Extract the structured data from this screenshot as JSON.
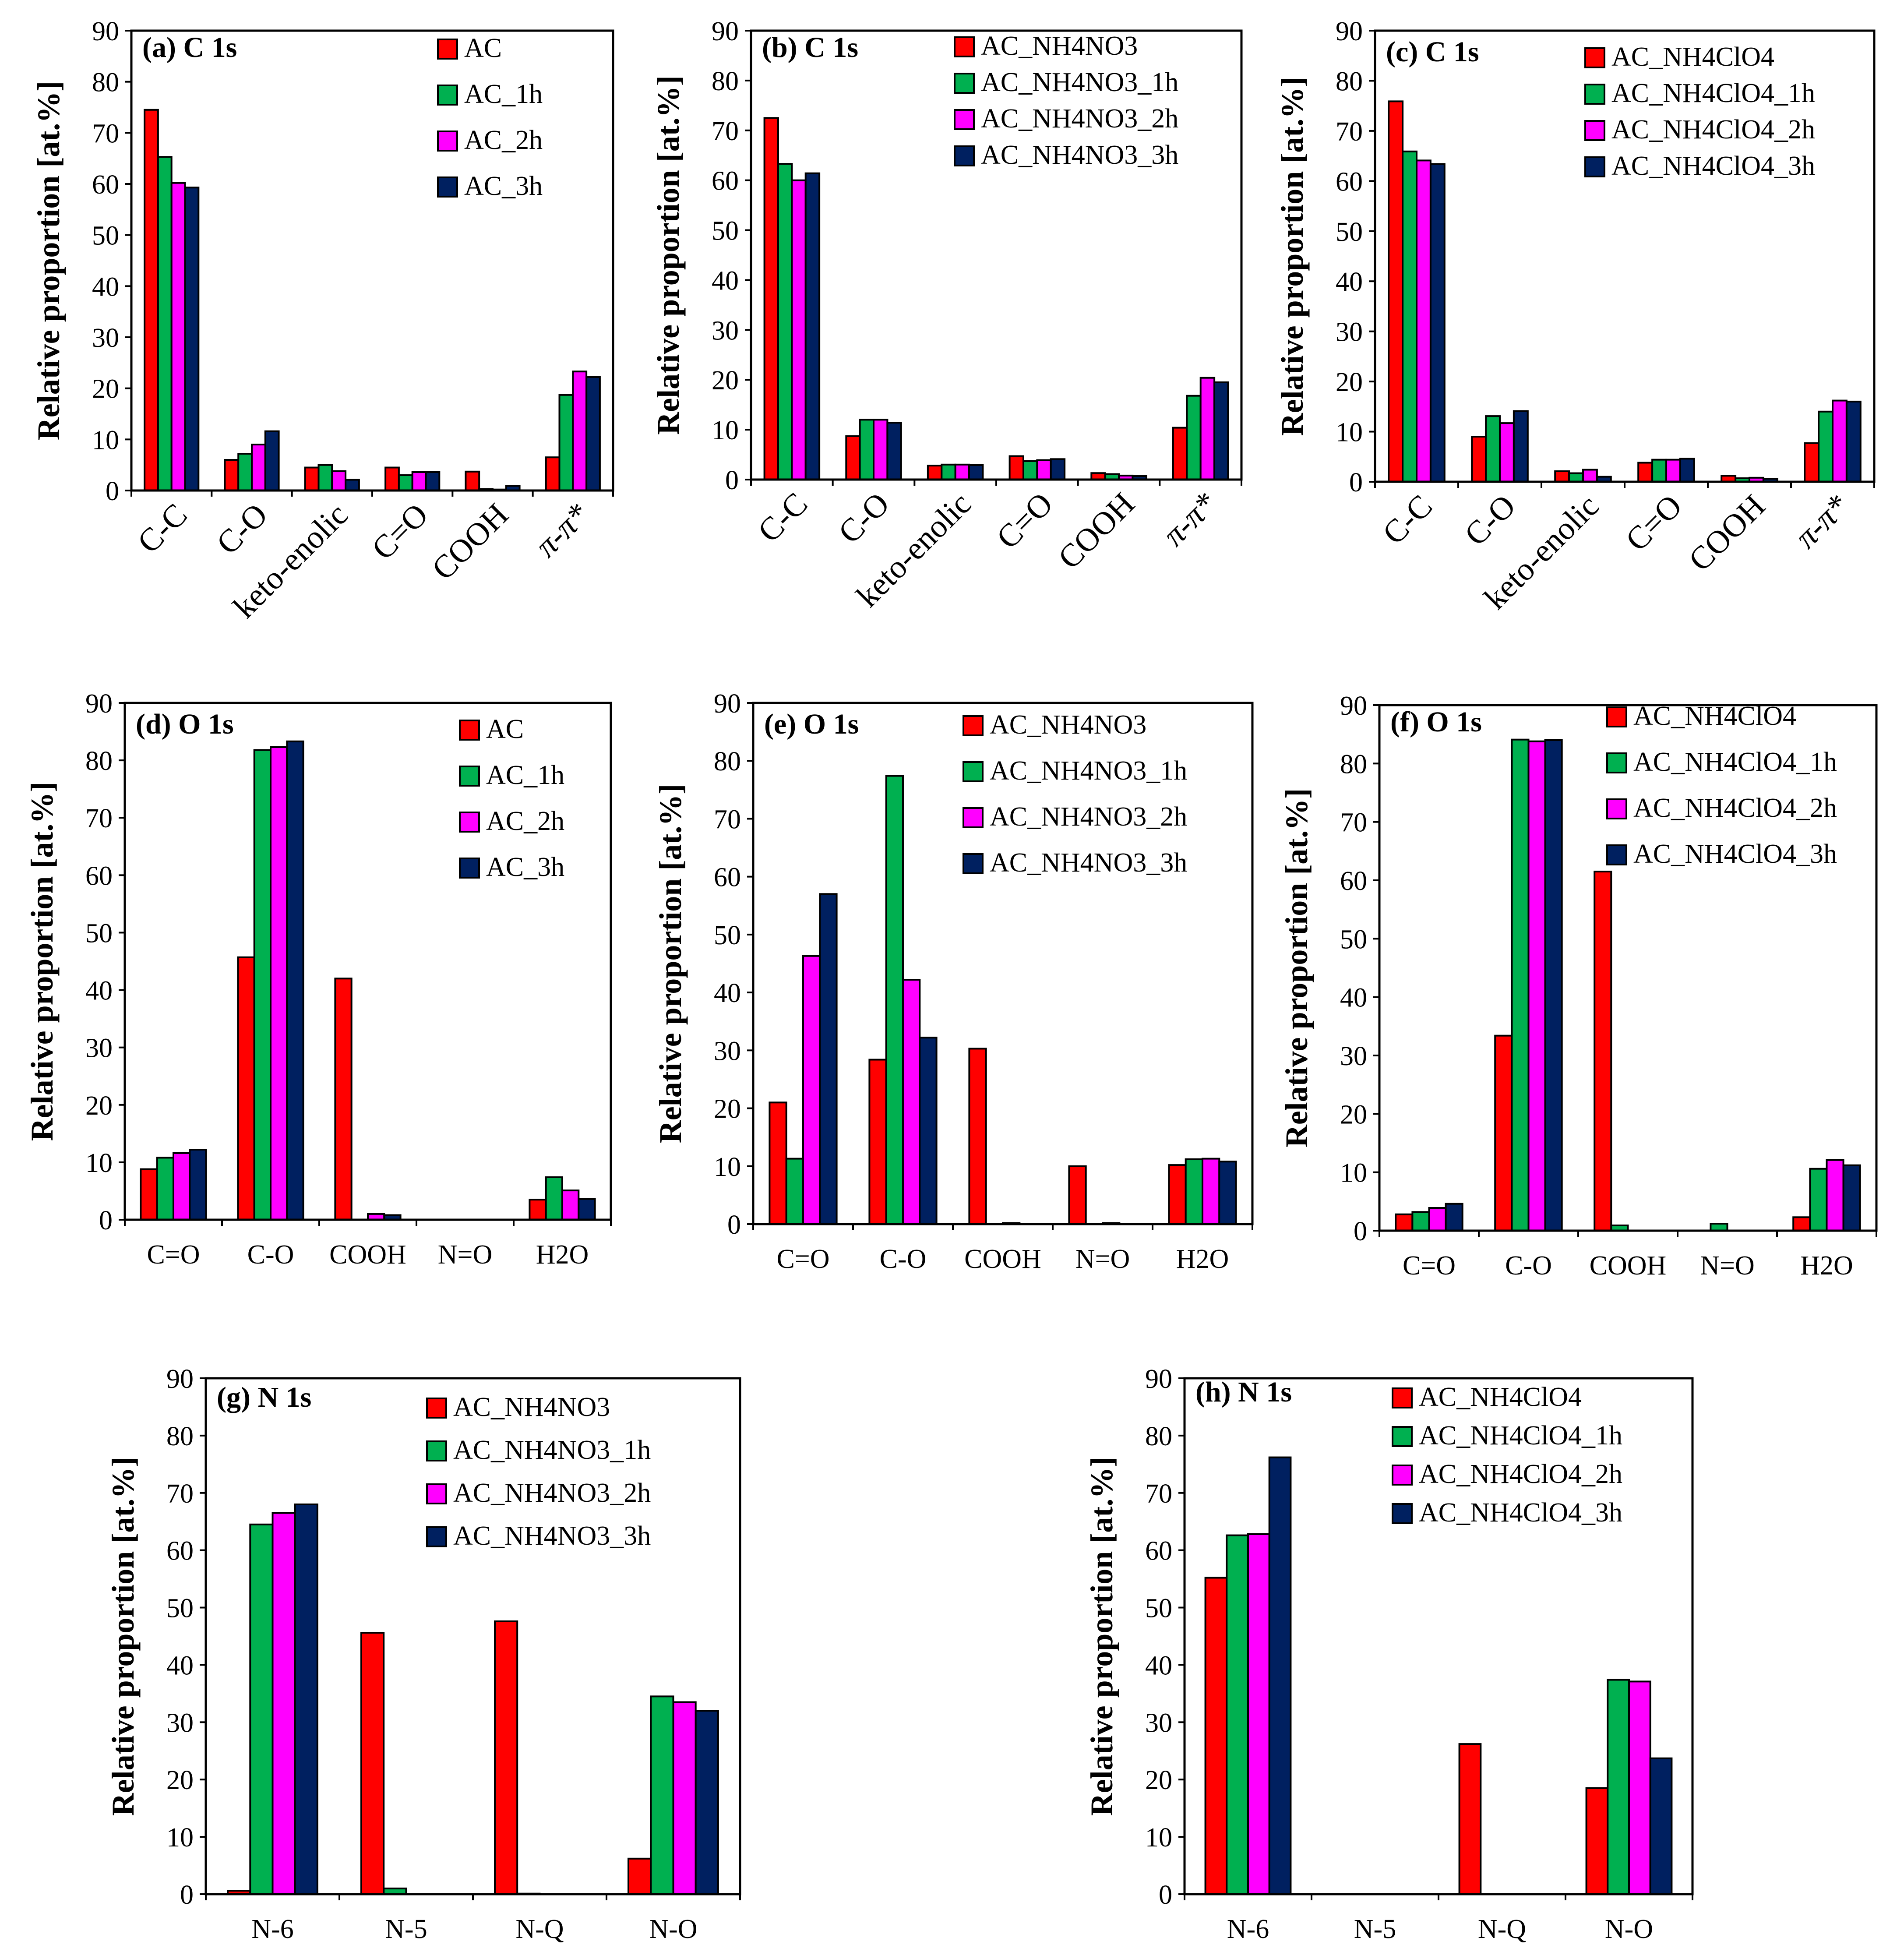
{
  "series_colors": [
    "#ff0000",
    "#00b050",
    "#ff00ff",
    "#002060"
  ],
  "y_ticks": [
    "0",
    "10",
    "20",
    "30",
    "40",
    "50",
    "60",
    "70",
    "80",
    "90"
  ],
  "chart_data": [
    {
      "id": "a",
      "type": "bar",
      "title": "(a) C 1s",
      "xlabel": "",
      "ylabel": "Relative proportion [at.%]",
      "ylim": [
        0,
        90
      ],
      "rotated_labels": true,
      "categories": [
        "C-C",
        "C-O",
        "keto-enolic",
        "C=O",
        "COOH",
        "π-π*"
      ],
      "series": [
        {
          "name": "AC",
          "values": [
            74.5,
            6.0,
            4.5,
            4.5,
            3.7,
            6.5
          ]
        },
        {
          "name": "AC_1h",
          "values": [
            65.3,
            7.2,
            5.0,
            3.0,
            0.3,
            18.7
          ]
        },
        {
          "name": "AC_2h",
          "values": [
            60.2,
            9.0,
            3.8,
            3.6,
            0.2,
            23.3
          ]
        },
        {
          "name": "AC_3h",
          "values": [
            59.3,
            11.6,
            2.1,
            3.6,
            0.9,
            22.2
          ]
        }
      ]
    },
    {
      "id": "b",
      "type": "bar",
      "title": "(b) C 1s",
      "xlabel": "",
      "ylabel": "Relative proportion [at.%]",
      "ylim": [
        0,
        90
      ],
      "rotated_labels": true,
      "categories": [
        "C-C",
        "C-O",
        "keto-enolic",
        "C=O",
        "COOH",
        "π-π*"
      ],
      "series": [
        {
          "name": "AC_NH4NO3",
          "values": [
            72.5,
            8.7,
            2.8,
            4.7,
            1.3,
            10.4
          ]
        },
        {
          "name": "AC_NH4NO3_1h",
          "values": [
            63.3,
            12.0,
            3.0,
            3.7,
            1.1,
            16.8
          ]
        },
        {
          "name": "AC_NH4NO3_2h",
          "values": [
            60.0,
            12.0,
            3.0,
            3.9,
            0.8,
            20.4
          ]
        },
        {
          "name": "AC_NH4NO3_3h",
          "values": [
            61.4,
            11.4,
            2.9,
            4.1,
            0.7,
            19.5
          ]
        }
      ]
    },
    {
      "id": "c",
      "type": "bar",
      "title": "(c) C 1s",
      "xlabel": "",
      "ylabel": "Relative proportion [at.%]",
      "ylim": [
        0,
        90
      ],
      "rotated_labels": true,
      "categories": [
        "C-C",
        "C-O",
        "keto-enolic",
        "C=O",
        "COOH",
        "π-π*"
      ],
      "series": [
        {
          "name": "AC_NH4ClO4",
          "values": [
            75.9,
            9.0,
            2.1,
            3.8,
            1.2,
            7.7
          ]
        },
        {
          "name": "AC_NH4ClO4_1h",
          "values": [
            65.9,
            13.1,
            1.7,
            4.4,
            0.7,
            14.0
          ]
        },
        {
          "name": "AC_NH4ClO4_2h",
          "values": [
            64.1,
            11.7,
            2.4,
            4.4,
            0.8,
            16.2
          ]
        },
        {
          "name": "AC_NH4ClO4_3h",
          "values": [
            63.4,
            14.1,
            1.0,
            4.6,
            0.6,
            16.0
          ]
        }
      ]
    },
    {
      "id": "d",
      "type": "bar",
      "title": "(d) O 1s",
      "xlabel": "",
      "ylabel": "Relative proportion [at.%]",
      "ylim": [
        0,
        90
      ],
      "rotated_labels": false,
      "categories": [
        "C=O",
        "C-O",
        "COOH",
        "N=O",
        "H2O"
      ],
      "series": [
        {
          "name": "AC",
          "values": [
            8.8,
            45.7,
            42.0,
            0,
            3.5
          ]
        },
        {
          "name": "AC_1h",
          "values": [
            10.8,
            81.8,
            0,
            0,
            7.4
          ]
        },
        {
          "name": "AC_2h",
          "values": [
            11.6,
            82.3,
            1.0,
            0,
            5.1
          ]
        },
        {
          "name": "AC_3h",
          "values": [
            12.2,
            83.3,
            0.8,
            0,
            3.6
          ]
        }
      ]
    },
    {
      "id": "e",
      "type": "bar",
      "title": "(e) O 1s",
      "xlabel": "",
      "ylabel": "Relative proportion [at.%]",
      "ylim": [
        0,
        90
      ],
      "rotated_labels": false,
      "categories": [
        "C=O",
        "C-O",
        "COOH",
        "N=O",
        "H2O"
      ],
      "series": [
        {
          "name": "AC_NH4NO3",
          "values": [
            21.0,
            28.4,
            30.3,
            10.0,
            10.2
          ]
        },
        {
          "name": "AC_NH4NO3_1h",
          "values": [
            11.3,
            77.4,
            0,
            0,
            11.2
          ]
        },
        {
          "name": "AC_NH4NO3_2h",
          "values": [
            46.3,
            42.2,
            0.2,
            0.2,
            11.3
          ]
        },
        {
          "name": "AC_NH4NO3_3h",
          "values": [
            57.0,
            32.2,
            0,
            0,
            10.8
          ]
        }
      ]
    },
    {
      "id": "f",
      "type": "bar",
      "title": "(f) O 1s",
      "xlabel": "",
      "ylabel": "Relative proportion [at.%]",
      "ylim": [
        0,
        90
      ],
      "rotated_labels": false,
      "categories": [
        "C=O",
        "C-O",
        "COOH",
        "N=O",
        "H2O"
      ],
      "series": [
        {
          "name": "AC_NH4ClO4",
          "values": [
            2.8,
            33.4,
            61.5,
            0,
            2.3
          ]
        },
        {
          "name": "AC_NH4ClO4_1h",
          "values": [
            3.2,
            84.1,
            0.9,
            1.2,
            10.6
          ]
        },
        {
          "name": "AC_NH4ClO4_2h",
          "values": [
            3.9,
            83.8,
            0,
            0,
            12.1
          ]
        },
        {
          "name": "AC_NH4ClO4_3h",
          "values": [
            4.6,
            84.0,
            0,
            0,
            11.2
          ]
        }
      ]
    },
    {
      "id": "g",
      "type": "bar",
      "title": "(g) N 1s",
      "xlabel": "",
      "ylabel": "Relative proportion [at.%]",
      "ylim": [
        0,
        90
      ],
      "rotated_labels": false,
      "categories": [
        "N-6",
        "N-5",
        "N-Q",
        "N-O"
      ],
      "series": [
        {
          "name": "AC_NH4NO3",
          "values": [
            0.6,
            45.6,
            47.6,
            6.2
          ]
        },
        {
          "name": "AC_NH4NO3_1h",
          "values": [
            64.5,
            1.0,
            0.1,
            34.5
          ]
        },
        {
          "name": "AC_NH4NO3_2h",
          "values": [
            66.5,
            0,
            0,
            33.5
          ]
        },
        {
          "name": "AC_NH4NO3_3h",
          "values": [
            68.0,
            0,
            0,
            32.0
          ]
        }
      ]
    },
    {
      "id": "h",
      "type": "bar",
      "title": "(h) N 1s",
      "xlabel": "",
      "ylabel": "Relative proportion [at.%]",
      "ylim": [
        0,
        90
      ],
      "rotated_labels": false,
      "categories": [
        "N-6",
        "N-5",
        "N-Q",
        "N-O"
      ],
      "series": [
        {
          "name": "AC_NH4ClO4",
          "values": [
            55.2,
            0,
            26.2,
            18.5
          ]
        },
        {
          "name": "AC_NH4ClO4_1h",
          "values": [
            62.6,
            0,
            0,
            37.4
          ]
        },
        {
          "name": "AC_NH4ClO4_2h",
          "values": [
            62.8,
            0,
            0,
            37.1
          ]
        },
        {
          "name": "AC_NH4ClO4_3h",
          "values": [
            76.2,
            0,
            0,
            23.7
          ]
        }
      ]
    }
  ]
}
